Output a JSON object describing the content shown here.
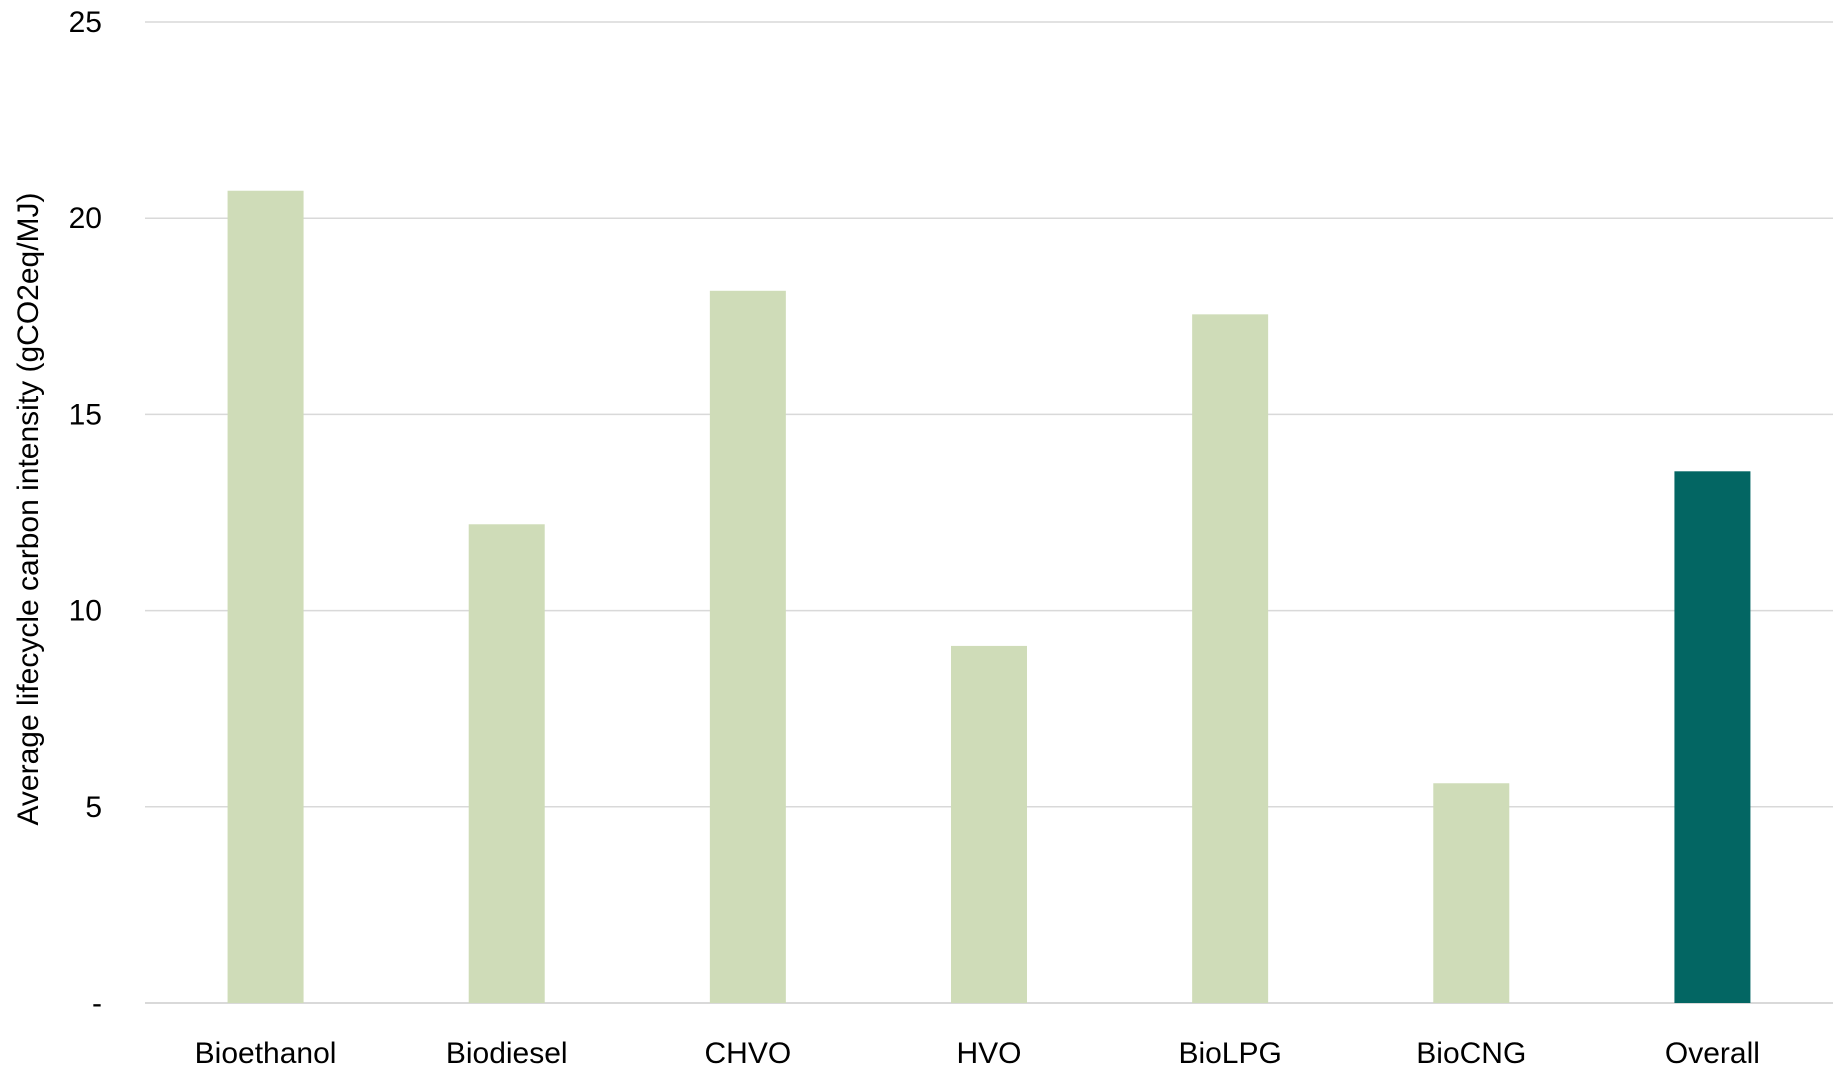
{
  "chart_data": {
    "type": "bar",
    "title": "",
    "xlabel": "",
    "ylabel": "Average lifecycle carbon intensity (gCO2eq/MJ)",
    "categories": [
      "Bioethanol",
      "Biodiesel",
      "CHVO",
      "HVO",
      "BioLPG",
      "BioCNG",
      "Overall"
    ],
    "values": [
      20.7,
      12.2,
      18.15,
      9.1,
      17.55,
      5.6,
      13.55
    ],
    "bar_colors": [
      "#cfdcb8",
      "#cfdcb8",
      "#cfdcb8",
      "#cfdcb8",
      "#cfdcb8",
      "#cfdcb8",
      "#036663"
    ],
    "ylim": [
      0,
      25
    ],
    "y_ticks": [
      0,
      5,
      10,
      15,
      20,
      25
    ],
    "y_tick_labels": [
      "-",
      "5",
      "10",
      "15",
      "20",
      "25"
    ],
    "grid": true,
    "gridline_color": "#d9d9d9",
    "legend": "none"
  }
}
